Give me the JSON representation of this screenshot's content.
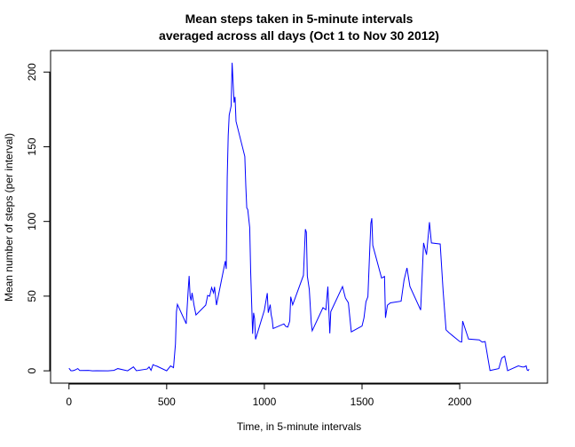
{
  "chart_data": {
    "type": "line",
    "title": [
      "Mean steps taken in 5-minute intervals",
      "averaged across all days (Oct 1 to Nov 30 2012)"
    ],
    "x_label": "Time, in 5-minute intervals",
    "y_label": "Mean number of steps (per interval)",
    "x": [
      0,
      10,
      20,
      30,
      45,
      55,
      100,
      120,
      140,
      200,
      230,
      250,
      300,
      330,
      345,
      400,
      410,
      420,
      430,
      440,
      450,
      500,
      520,
      535,
      545,
      550,
      555,
      600,
      610,
      615,
      620,
      625,
      630,
      640,
      650,
      700,
      710,
      720,
      730,
      740,
      745,
      755,
      800,
      805,
      810,
      815,
      820,
      830,
      835,
      845,
      850,
      855,
      900,
      905,
      910,
      915,
      925,
      930,
      935,
      940,
      945,
      950,
      955,
      1000,
      1015,
      1020,
      1030,
      1035,
      1040,
      1045,
      1100,
      1110,
      1120,
      1130,
      1135,
      1145,
      1200,
      1210,
      1215,
      1220,
      1230,
      1240,
      1245,
      1300,
      1315,
      1325,
      1335,
      1340,
      1400,
      1415,
      1430,
      1445,
      1500,
      1510,
      1520,
      1530,
      1540,
      1545,
      1550,
      1555,
      1600,
      1615,
      1620,
      1630,
      1645,
      1700,
      1715,
      1730,
      1745,
      1800,
      1815,
      1830,
      1845,
      1855,
      1900,
      1915,
      1930,
      1945,
      2000,
      2010,
      2015,
      2030,
      2045,
      2100,
      2115,
      2130,
      2145,
      2155,
      2200,
      2215,
      2230,
      2245,
      2300,
      2320,
      2330,
      2340,
      2345,
      2350,
      2355
    ],
    "series": [
      {
        "name": "mean steps",
        "color": "#0000ff",
        "values": [
          1.7,
          0.1,
          0.1,
          0.5,
          1.5,
          0.2,
          0.3,
          0,
          0.1,
          0,
          0.3,
          1.5,
          0,
          2.6,
          0.1,
          1.2,
          2.6,
          0.3,
          4.1,
          3.5,
          3.1,
          0,
          3.3,
          2.1,
          18,
          39.5,
          44.5,
          31.5,
          53.8,
          63.5,
          49.9,
          47.1,
          52.2,
          44,
          37.4,
          44,
          50.5,
          49.9,
          55.7,
          52.2,
          56.2,
          44,
          73.4,
          68.2,
          129.4,
          157.5,
          171.2,
          177.3,
          206.2,
          179.6,
          183.4,
          167,
          143.5,
          124,
          109,
          108,
          95.9,
          66,
          45.2,
          24.8,
          38.8,
          34.9,
          21.1,
          40.6,
          52,
          38.9,
          44.3,
          37.4,
          34.5,
          28.3,
          31.4,
          29.7,
          29.3,
          33.3,
          49.6,
          44.2,
          63.9,
          94.8,
          92.8,
          63.4,
          54.5,
          32.4,
          26.8,
          42.3,
          40.9,
          56.4,
          25.1,
          39.6,
          56.4,
          48.7,
          45.6,
          26.1,
          30,
          35.5,
          46.2,
          49.6,
          82.9,
          98.7,
          102.1,
          84,
          62.1,
          63.2,
          35.5,
          43.9,
          45.5,
          46.6,
          60.8,
          68.9,
          56.5,
          40.7,
          85.6,
          77.7,
          99.5,
          85.6,
          84.9,
          53.5,
          27.4,
          25.5,
          19.6,
          19.3,
          33.3,
          27.3,
          21.3,
          20.7,
          19.2,
          19.6,
          7.8,
          0.2,
          1.5,
          8.5,
          9.8,
          0.1,
          3.3,
          2.6,
          2.6,
          3.3,
          0.6,
          0.2,
          1.1
        ]
      }
    ],
    "xlim": [
      -94.2,
      2449.2
    ],
    "xticks": [
      0,
      500,
      1000,
      1500,
      2000
    ],
    "ylim": [
      -8.25,
      214.4
    ],
    "yticks": [
      0,
      50,
      100,
      150,
      200
    ]
  }
}
